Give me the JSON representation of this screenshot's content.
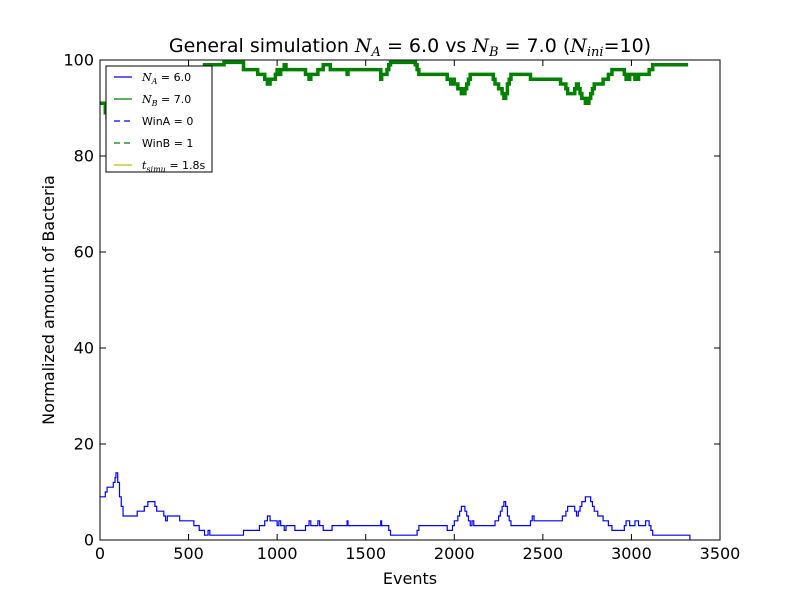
{
  "chart_data": {
    "type": "line",
    "title": {
      "prefix": "General simulation ",
      "na_symbol": "N",
      "na_sub": "A",
      "na_value": " = 6.0 vs ",
      "nb_symbol": "N",
      "nb_sub": "B",
      "nb_value": " = 7.0 (",
      "ni_symbol": "N",
      "ni_sub": "ini",
      "ni_value": "=10)"
    },
    "xlabel": "Events",
    "ylabel": "Normalized amount of Bacteria",
    "xlim": [
      0,
      3500
    ],
    "ylim": [
      0,
      100
    ],
    "xticks": [
      "0",
      "500",
      "1000",
      "1500",
      "2000",
      "2500",
      "3000",
      "3500"
    ],
    "yticks": [
      "0",
      "20",
      "40",
      "60",
      "80",
      "100"
    ],
    "grid": false,
    "legend_position": "top-left",
    "legend": [
      {
        "math_symbol": "N",
        "math_sub": "A",
        "text": " = 6.0",
        "color": "#0000ff",
        "style": "solid"
      },
      {
        "math_symbol": "N",
        "math_sub": "B",
        "text": " = 7.0",
        "color": "#008000",
        "style": "solid"
      },
      {
        "math_symbol": "",
        "math_sub": "",
        "text": "WinA = 0",
        "color": "#0000ff",
        "style": "dashed"
      },
      {
        "math_symbol": "",
        "math_sub": "",
        "text": "WinB = 1",
        "color": "#008000",
        "style": "dashed"
      },
      {
        "math_symbol": "t",
        "math_sub": "simu",
        "text": " = 1.8s",
        "color": "#bfbf00",
        "style": "solid"
      }
    ],
    "series": [
      {
        "color": "#0000ff",
        "points": [
          [
            0,
            9
          ],
          [
            20,
            9
          ],
          [
            30,
            10
          ],
          [
            40,
            11
          ],
          [
            65,
            11
          ],
          [
            75,
            12
          ],
          [
            85,
            13
          ],
          [
            90,
            14
          ],
          [
            100,
            12
          ],
          [
            110,
            9
          ],
          [
            120,
            7
          ],
          [
            130,
            5
          ],
          [
            200,
            5
          ],
          [
            210,
            6
          ],
          [
            240,
            6
          ],
          [
            250,
            7
          ],
          [
            270,
            8
          ],
          [
            300,
            8
          ],
          [
            310,
            7
          ],
          [
            320,
            6
          ],
          [
            350,
            6
          ],
          [
            360,
            5
          ],
          [
            370,
            4
          ],
          [
            380,
            5
          ],
          [
            440,
            5
          ],
          [
            450,
            4
          ],
          [
            520,
            4
          ],
          [
            530,
            3
          ],
          [
            550,
            3
          ],
          [
            560,
            2
          ],
          [
            580,
            2
          ],
          [
            590,
            1
          ],
          [
            610,
            2
          ],
          [
            620,
            1
          ],
          [
            700,
            1
          ],
          [
            800,
            1
          ],
          [
            810,
            2
          ],
          [
            890,
            2
          ],
          [
            900,
            3
          ],
          [
            930,
            4
          ],
          [
            945,
            5
          ],
          [
            960,
            4
          ],
          [
            990,
            4
          ],
          [
            1000,
            3
          ],
          [
            1010,
            4
          ],
          [
            1020,
            3
          ],
          [
            1040,
            2
          ],
          [
            1050,
            3
          ],
          [
            1080,
            3
          ],
          [
            1100,
            2
          ],
          [
            1150,
            2
          ],
          [
            1160,
            3
          ],
          [
            1180,
            4
          ],
          [
            1190,
            3
          ],
          [
            1220,
            3
          ],
          [
            1230,
            4
          ],
          [
            1240,
            3
          ],
          [
            1260,
            2
          ],
          [
            1300,
            2
          ],
          [
            1310,
            3
          ],
          [
            1390,
            3
          ],
          [
            1395,
            4
          ],
          [
            1400,
            3
          ],
          [
            1580,
            3
          ],
          [
            1585,
            4
          ],
          [
            1590,
            3
          ],
          [
            1620,
            3
          ],
          [
            1630,
            2
          ],
          [
            1640,
            1
          ],
          [
            1780,
            1
          ],
          [
            1790,
            2
          ],
          [
            1800,
            3
          ],
          [
            1950,
            3
          ],
          [
            1960,
            2
          ],
          [
            1980,
            2
          ],
          [
            1990,
            3
          ],
          [
            2000,
            4
          ],
          [
            2020,
            5
          ],
          [
            2030,
            6
          ],
          [
            2040,
            7
          ],
          [
            2060,
            6
          ],
          [
            2070,
            5
          ],
          [
            2080,
            4
          ],
          [
            2090,
            3
          ],
          [
            2100,
            4
          ],
          [
            2110,
            3
          ],
          [
            2220,
            3
          ],
          [
            2230,
            4
          ],
          [
            2250,
            5
          ],
          [
            2260,
            6
          ],
          [
            2270,
            7
          ],
          [
            2280,
            8
          ],
          [
            2290,
            7
          ],
          [
            2300,
            5
          ],
          [
            2310,
            4
          ],
          [
            2320,
            3
          ],
          [
            2420,
            3
          ],
          [
            2430,
            4
          ],
          [
            2440,
            5
          ],
          [
            2450,
            4
          ],
          [
            2500,
            4
          ],
          [
            2600,
            4
          ],
          [
            2610,
            5
          ],
          [
            2630,
            6
          ],
          [
            2640,
            7
          ],
          [
            2670,
            7
          ],
          [
            2680,
            6
          ],
          [
            2690,
            5
          ],
          [
            2700,
            6
          ],
          [
            2710,
            7
          ],
          [
            2720,
            8
          ],
          [
            2740,
            9
          ],
          [
            2760,
            9
          ],
          [
            2770,
            8
          ],
          [
            2780,
            7
          ],
          [
            2790,
            6
          ],
          [
            2810,
            5
          ],
          [
            2830,
            5
          ],
          [
            2840,
            4
          ],
          [
            2870,
            3
          ],
          [
            2890,
            2
          ],
          [
            2950,
            2
          ],
          [
            2960,
            3
          ],
          [
            2970,
            4
          ],
          [
            2990,
            3
          ],
          [
            3010,
            3
          ],
          [
            3020,
            4
          ],
          [
            3040,
            3
          ],
          [
            3060,
            3
          ],
          [
            3080,
            4
          ],
          [
            3100,
            3
          ],
          [
            3110,
            2
          ],
          [
            3120,
            1
          ],
          [
            3320,
            1
          ],
          [
            3330,
            0
          ]
        ]
      },
      {
        "color": "#008000",
        "points": [
          [
            0,
            91
          ],
          [
            20,
            91
          ],
          [
            30,
            89
          ],
          [
            40,
            88
          ],
          [
            45,
            90
          ],
          [
            50,
            88
          ],
          [
            90,
            87
          ],
          [
            100,
            88
          ],
          [
            110,
            90
          ],
          [
            120,
            92
          ],
          [
            130,
            94
          ],
          [
            200,
            95
          ],
          [
            210,
            94
          ],
          [
            240,
            94
          ],
          [
            250,
            93
          ],
          [
            270,
            92
          ],
          [
            300,
            92
          ],
          [
            310,
            93
          ],
          [
            320,
            94
          ],
          [
            350,
            94
          ],
          [
            360,
            95
          ],
          [
            370,
            96
          ],
          [
            380,
            95
          ],
          [
            440,
            95
          ],
          [
            450,
            96
          ],
          [
            520,
            96
          ],
          [
            530,
            97
          ],
          [
            550,
            97
          ],
          [
            560,
            98
          ],
          [
            580,
            98
          ],
          [
            590,
            99
          ],
          [
            610,
            99
          ],
          [
            620,
            99
          ],
          [
            700,
            99.5
          ],
          [
            800,
            99.5
          ],
          [
            810,
            98
          ],
          [
            890,
            97
          ],
          [
            910,
            97
          ],
          [
            930,
            96
          ],
          [
            945,
            95
          ],
          [
            960,
            96
          ],
          [
            990,
            97
          ],
          [
            1000,
            98
          ],
          [
            1010,
            97
          ],
          [
            1020,
            98
          ],
          [
            1040,
            99
          ],
          [
            1050,
            98
          ],
          [
            1080,
            98
          ],
          [
            1100,
            98
          ],
          [
            1150,
            98
          ],
          [
            1160,
            97
          ],
          [
            1180,
            96
          ],
          [
            1190,
            97
          ],
          [
            1220,
            97
          ],
          [
            1230,
            98
          ],
          [
            1240,
            98
          ],
          [
            1260,
            99
          ],
          [
            1300,
            98
          ],
          [
            1310,
            98
          ],
          [
            1390,
            98
          ],
          [
            1395,
            97
          ],
          [
            1400,
            98
          ],
          [
            1580,
            98
          ],
          [
            1585,
            96
          ],
          [
            1590,
            97
          ],
          [
            1620,
            98
          ],
          [
            1630,
            99
          ],
          [
            1640,
            99.5
          ],
          [
            1780,
            99
          ],
          [
            1790,
            98
          ],
          [
            1800,
            97
          ],
          [
            1950,
            97
          ],
          [
            1960,
            96
          ],
          [
            1980,
            95
          ],
          [
            1990,
            96
          ],
          [
            2000,
            95
          ],
          [
            2020,
            94
          ],
          [
            2030,
            94
          ],
          [
            2040,
            93
          ],
          [
            2060,
            94
          ],
          [
            2070,
            95
          ],
          [
            2080,
            96
          ],
          [
            2090,
            97
          ],
          [
            2100,
            97
          ],
          [
            2110,
            97
          ],
          [
            2220,
            96
          ],
          [
            2230,
            95
          ],
          [
            2250,
            94
          ],
          [
            2260,
            94
          ],
          [
            2270,
            93
          ],
          [
            2280,
            92
          ],
          [
            2290,
            93
          ],
          [
            2300,
            95
          ],
          [
            2310,
            96
          ],
          [
            2320,
            97
          ],
          [
            2420,
            97
          ],
          [
            2430,
            96
          ],
          [
            2440,
            96
          ],
          [
            2450,
            96
          ],
          [
            2500,
            96
          ],
          [
            2600,
            95
          ],
          [
            2610,
            95
          ],
          [
            2630,
            94
          ],
          [
            2640,
            93
          ],
          [
            2670,
            93
          ],
          [
            2680,
            94
          ],
          [
            2690,
            95
          ],
          [
            2700,
            94
          ],
          [
            2710,
            93
          ],
          [
            2720,
            92
          ],
          [
            2740,
            91
          ],
          [
            2760,
            92
          ],
          [
            2770,
            93
          ],
          [
            2780,
            94
          ],
          [
            2790,
            95
          ],
          [
            2810,
            95
          ],
          [
            2830,
            95
          ],
          [
            2840,
            96
          ],
          [
            2870,
            97
          ],
          [
            2890,
            98
          ],
          [
            2950,
            98
          ],
          [
            2960,
            97
          ],
          [
            2970,
            96
          ],
          [
            2990,
            97
          ],
          [
            3010,
            97
          ],
          [
            3020,
            96
          ],
          [
            3040,
            97
          ],
          [
            3060,
            97
          ],
          [
            3080,
            97
          ],
          [
            3100,
            98
          ],
          [
            3110,
            98
          ],
          [
            3120,
            99
          ],
          [
            3320,
            99
          ]
        ]
      }
    ]
  }
}
